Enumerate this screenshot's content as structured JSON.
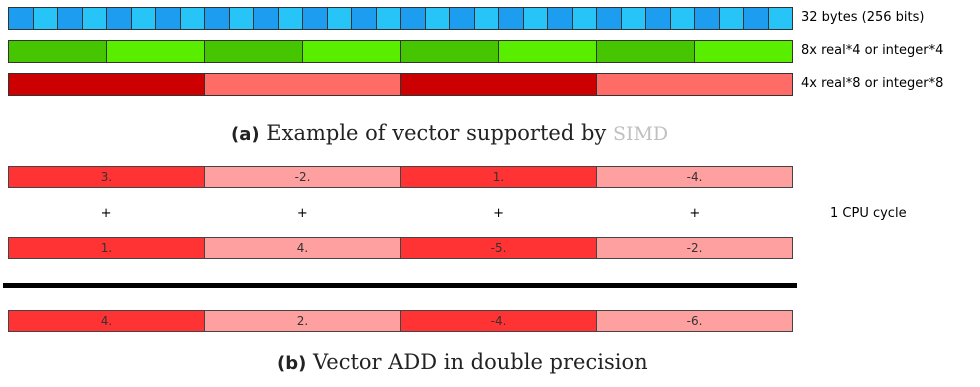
{
  "section_a": {
    "rows": [
      {
        "cells": 32,
        "label": "32 bytes (256 bits)"
      },
      {
        "cells": 8,
        "label": "8x real*4 or integer*4"
      },
      {
        "cells": 4,
        "label": "4x real*8 or integer*8"
      }
    ],
    "caption": {
      "tag": "(a)",
      "text": "Example of vector supported by",
      "acronym": "SIMD"
    }
  },
  "section_b": {
    "vector1": [
      "3.",
      "-2.",
      "1.",
      "-4."
    ],
    "operator": "+",
    "vector2": [
      "1.",
      "4.",
      "-5.",
      "-2."
    ],
    "cycle_label": "1 CPU cycle",
    "result": [
      "4.",
      "2.",
      "-4.",
      "-6."
    ],
    "caption": {
      "tag": "(b)",
      "text": "Vector ADD in double precision"
    }
  },
  "colors": {
    "blue_dark": "#1c9df0",
    "blue_light": "#27c4f7",
    "green_dark": "#46c600",
    "green_light": "#59ee00",
    "red_dark": "#cc0000",
    "red_light": "#ff6b66",
    "vec_dark": "#ff3333",
    "vec_light": "#ffa0a0"
  }
}
